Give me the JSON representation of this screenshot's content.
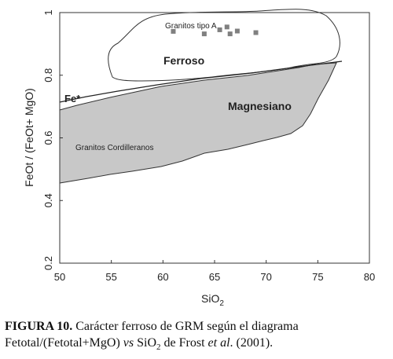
{
  "chart_data": {
    "type": "scatter",
    "xlabel": "SiO",
    "xlabel_sub": "2",
    "ylabel": "FeOt / (FeOt+ MgO)",
    "xlim": [
      50,
      80
    ],
    "ylim": [
      0.2,
      1.0
    ],
    "x_ticks": [
      "50",
      "55",
      "60",
      "65",
      "70",
      "75",
      "80"
    ],
    "y_ticks": [
      "0.2",
      "0.4",
      "0.6",
      "0.8",
      "1"
    ],
    "regions": {
      "magnesiano_label": "Magnesiano",
      "ferroso_label": "Ferroso",
      "divider_label": "Fe*"
    },
    "field_labels": {
      "granitos_tipo_a": "Granitos tipo A",
      "granitos_cordilleranos": "Granitos Cordilleranos"
    },
    "series": [
      {
        "name": "Granitos tipo A",
        "points": [
          [
            61.0,
            0.94
          ],
          [
            64.0,
            0.932
          ],
          [
            65.5,
            0.945
          ],
          [
            66.2,
            0.954
          ],
          [
            66.5,
            0.932
          ],
          [
            67.2,
            0.941
          ],
          [
            69.0,
            0.936
          ]
        ]
      }
    ],
    "colors": {
      "field_fill": "#c8c8c8",
      "marker": "#808080",
      "line": "#222222"
    }
  },
  "caption": {
    "figure_label": "FIGURA 10.",
    "text_line1": " Carácter ferroso de GRM según el diagrama",
    "text_line2_a": "Fetotal/(Fetotal+MgO) ",
    "text_line2_vs": "vs",
    "text_line2_b": " SiO",
    "text_line2_sub": "2",
    "text_line2_c": " de Frost ",
    "text_line2_etal": "et al",
    "text_line2_d": ". (2001)."
  }
}
